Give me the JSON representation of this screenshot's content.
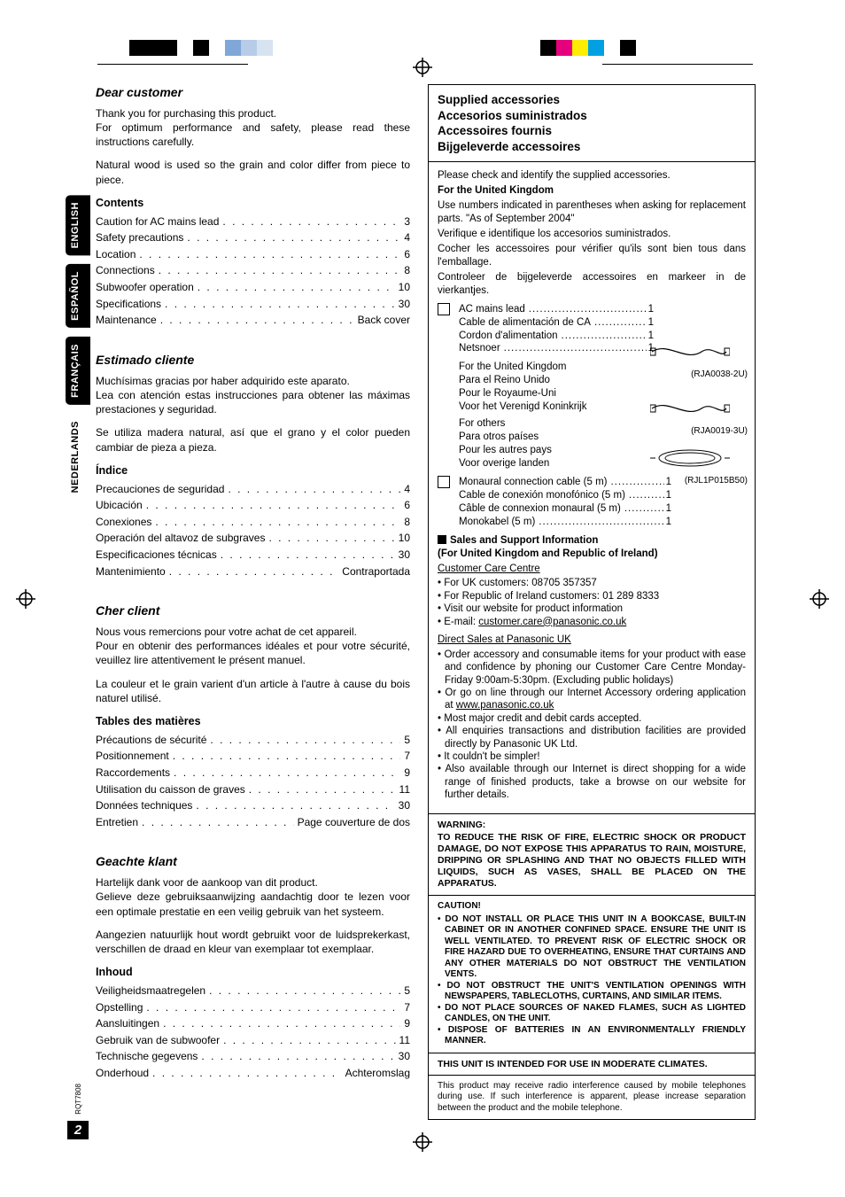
{
  "print_marks": {
    "color_bars_left": [
      "#ffffff",
      "#ffffff",
      "#000000",
      "#000000",
      "#000000",
      "#ffffff",
      "#000000",
      "#ffffff",
      "#7fa8d8",
      "#b7cce6",
      "#d8e3f1"
    ],
    "color_bars_right": [
      "#000000",
      "#e6007e",
      "#ffed00",
      "#00a0e3",
      "#ffffff",
      "#000000"
    ]
  },
  "page": {
    "number_label": "2",
    "doc_code": "RQT7808"
  },
  "lang_tabs": [
    {
      "label": "ENGLISH",
      "active": true
    },
    {
      "label": "ESPAÑOL",
      "active": true
    },
    {
      "label": "FRANÇAIS",
      "active": true
    },
    {
      "label": "NEDERLANDS",
      "active": false
    }
  ],
  "left": {
    "en": {
      "heading": "Dear customer",
      "p1": "Thank you for purchasing this product.",
      "p2": "For optimum performance and safety, please read these instructions carefully.",
      "p3": "Natural wood is used so the grain and color differ from piece to piece.",
      "contents_label": "Contents",
      "toc": [
        {
          "label": "Caution for AC mains lead",
          "page": "3"
        },
        {
          "label": "Safety precautions",
          "page": "4"
        },
        {
          "label": "Location",
          "page": "6"
        },
        {
          "label": "Connections",
          "page": "8"
        },
        {
          "label": "Subwoofer operation",
          "page": "10"
        },
        {
          "label": "Specifications",
          "page": "30"
        },
        {
          "label": "Maintenance",
          "page": "Back cover"
        }
      ]
    },
    "es": {
      "heading": "Estimado cliente",
      "p1": "Muchísimas gracias por haber adquirido este aparato.",
      "p2": "Lea con atención estas instrucciones para obtener las máximas prestaciones y seguridad.",
      "p3": "Se utiliza madera natural, así que el grano y el color pueden cambiar de pieza a pieza.",
      "contents_label": "Índice",
      "toc": [
        {
          "label": "Precauciones de seguridad",
          "page": "4"
        },
        {
          "label": "Ubicación",
          "page": "6"
        },
        {
          "label": "Conexiones",
          "page": "8"
        },
        {
          "label": "Operación del altavoz de subgraves",
          "page": "10"
        },
        {
          "label": "Especificaciones técnicas",
          "page": "30"
        },
        {
          "label": "Mantenimiento",
          "page": "Contraportada"
        }
      ]
    },
    "fr": {
      "heading": "Cher client",
      "p1": "Nous vous remercions pour votre achat de cet appareil.",
      "p2": "Pour en obtenir des performances idéales et pour votre sécurité, veuillez lire attentivement le présent manuel.",
      "p3": "La couleur et le grain varient d'un article à l'autre à cause du bois naturel utilisé.",
      "contents_label": "Tables des matières",
      "toc": [
        {
          "label": "Précautions de sécurité",
          "page": "5"
        },
        {
          "label": "Positionnement",
          "page": "7"
        },
        {
          "label": "Raccordements",
          "page": "9"
        },
        {
          "label": "Utilisation du caisson de graves",
          "page": "11"
        },
        {
          "label": "Données techniques",
          "page": "30"
        },
        {
          "label": "Entretien",
          "page": "Page couverture de dos"
        }
      ]
    },
    "nl": {
      "heading": "Geachte klant",
      "p1": "Hartelijk dank voor de aankoop van dit product.",
      "p2": "Gelieve deze gebruiksaanwijzing aandachtig door te lezen voor een optimale prestatie en een veilig gebruik van het systeem.",
      "p3": "Aangezien natuurlijk hout wordt gebruikt voor de luidsprekerkast, verschillen de draad en kleur van exemplaar tot exemplaar.",
      "contents_label": "Inhoud",
      "toc": [
        {
          "label": "Veiligheidsmaatregelen",
          "page": "5"
        },
        {
          "label": "Opstelling",
          "page": "7"
        },
        {
          "label": "Aansluitingen",
          "page": "9"
        },
        {
          "label": "Gebruik van de subwoofer",
          "page": "11"
        },
        {
          "label": "Technische gegevens",
          "page": "30"
        },
        {
          "label": "Onderhoud",
          "page": "Achteromslag"
        }
      ]
    }
  },
  "right": {
    "title_lines": [
      "Supplied accessories",
      "Accesorios suministrados",
      "Accessoires fournis",
      "Bijgeleverde accessoires"
    ],
    "intro1": "Please check and identify the supplied accessories.",
    "intro_uk_bold": "For the United Kingdom",
    "intro_uk": "Use numbers indicated in parentheses when asking for replacement parts. \"As of September 2004\"",
    "intro_es": "Verifique e identifique los accesorios suministrados.",
    "intro_fr": "Cocher les accessoires pour vérifier qu'ils sont bien tous dans l'emballage.",
    "intro_nl": "Controleer de bijgeleverde accessoires en markeer in de vierkantjes.",
    "acc1": {
      "lines": [
        {
          "label": "AC mains lead",
          "qty": "1"
        },
        {
          "label": "Cable de alimentación de CA",
          "qty": "1"
        },
        {
          "label": "Cordon d'alimentation",
          "qty": "1"
        },
        {
          "label": "Netsnoer",
          "qty": "1"
        }
      ],
      "uk_group": [
        "For the United Kingdom",
        "Para el Reino Unido",
        "Pour le Royaume-Uni",
        "Voor het Verenigd Koninkrijk"
      ],
      "uk_part": "(RJA0038-2U)",
      "other_group": [
        "For others",
        "Para otros países",
        "Pour les autres pays",
        "Voor overige landen"
      ],
      "other_part": "(RJA0019-3U)"
    },
    "acc2": {
      "lines": [
        {
          "label": "Monaural connection cable (5 m)",
          "qty": "1"
        },
        {
          "label": "Cable de conexión monofónico (5 m)",
          "qty": "1"
        },
        {
          "label": "Câble de connexion monaural (5 m)",
          "qty": "1"
        },
        {
          "label": "Monokabel (5 m)",
          "qty": "1"
        }
      ],
      "part": "(RJL1P015B50)"
    },
    "support": {
      "header": "Sales and Support Information",
      "header_sub": "(For United Kingdom and Republic of Ireland)",
      "ccc": "Customer Care Centre",
      "bullets1": [
        "For UK customers: 08705 357357",
        "For Republic of Ireland customers: 01 289 8333",
        "Visit our website for product information",
        "E-mail: customer.care@panasonic.co.uk"
      ],
      "direct": "Direct Sales at Panasonic UK",
      "bullets2": [
        "Order accessory and consumable items for your product with ease and conﬁdence by phoning our Customer Care Centre Monday-Friday 9:00am-5:30pm. (Excluding public holidays)",
        "Or go on line through our Internet Accessory ordering application at www.panasonic.co.uk",
        "Most major credit and debit cards accepted.",
        "All enquiries transactions and distribution facilities are provided directly by Panasonic UK Ltd.",
        "It couldn't be simpler!",
        "Also available through our Internet is direct shopping for a wide range of ﬁnished products, take a browse on our website for further details."
      ]
    },
    "warning_label": "WARNING:",
    "warning_body": "TO REDUCE THE RISK OF FIRE, ELECTRIC SHOCK OR PRODUCT DAMAGE, DO NOT EXPOSE THIS APPARATUS TO RAIN, MOISTURE, DRIPPING OR SPLASHING AND THAT NO OBJECTS FILLED WITH LIQUIDS, SUCH AS VASES, SHALL BE PLACED ON THE APPARATUS.",
    "caution_label": "CAUTION!",
    "caution_items": [
      "DO NOT INSTALL OR PLACE THIS UNIT IN A BOOKCASE, BUILT-IN CABINET OR IN ANOTHER CONFINED SPACE. ENSURE THE UNIT IS WELL VENTILATED. TO PREVENT RISK OF ELECTRIC SHOCK OR FIRE HAZARD DUE TO OVERHEATING, ENSURE THAT CURTAINS AND ANY OTHER MATERIALS DO NOT OBSTRUCT THE VENTILATION VENTS.",
      "DO NOT OBSTRUCT THE UNIT'S VENTILATION OPENINGS WITH NEWSPAPERS, TABLECLOTHS, CURTAINS, AND SIMILAR ITEMS.",
      "DO NOT PLACE SOURCES OF NAKED FLAMES, SUCH AS LIGHTED CANDLES, ON THE UNIT.",
      "DISPOSE OF BATTERIES IN AN ENVIRONMENTALLY FRIENDLY MANNER."
    ],
    "climate": "THIS UNIT IS INTENDED FOR USE IN MODERATE CLIMATES.",
    "radio": "This product may receive radio interference caused by mobile telephones during use. If such interference is apparent, please increase separation between the product and the mobile telephone."
  }
}
